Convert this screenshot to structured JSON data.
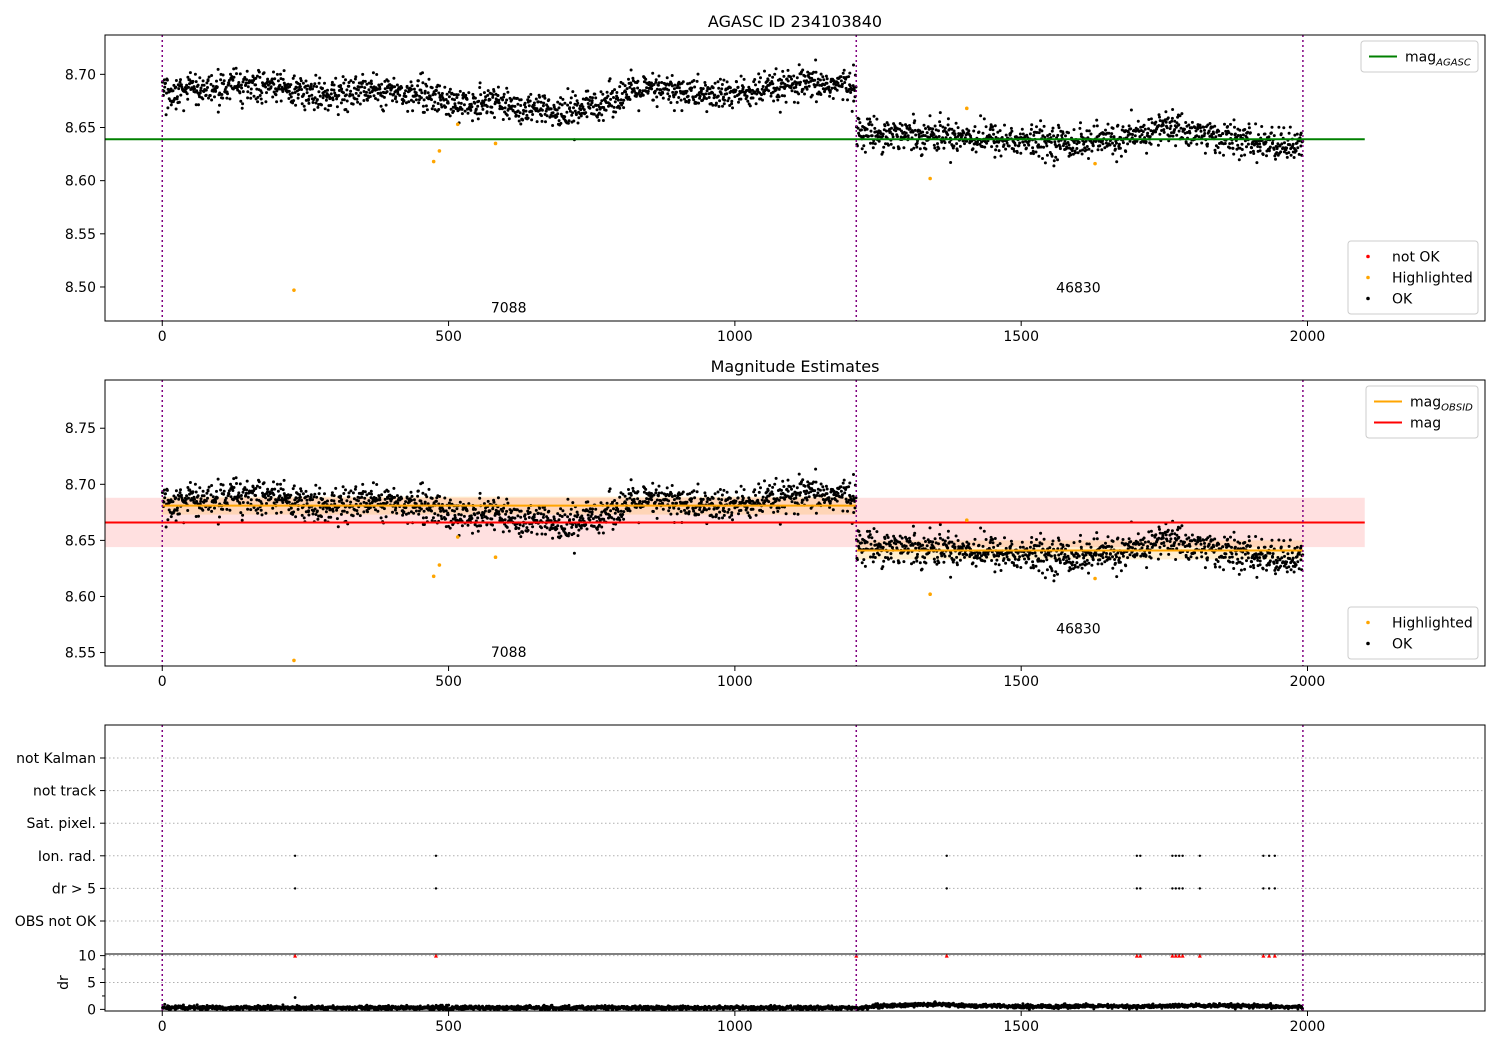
{
  "chart_data": [
    {
      "id": "agasc",
      "type": "scatter",
      "title": "AGASC ID 234103840",
      "xlim": [
        -100,
        2310
      ],
      "ylim": [
        8.468,
        8.737
      ],
      "xticks": [
        0,
        500,
        1000,
        1500,
        2000
      ],
      "yticks": [
        8.5,
        8.55,
        8.6,
        8.65,
        8.7
      ],
      "ytick_labels": [
        "8.50",
        "8.55",
        "8.60",
        "8.65",
        "8.70"
      ],
      "obs_boundaries": [
        0,
        1212,
        1992
      ],
      "obs_labels": [
        {
          "x": 605,
          "y": 8.476,
          "text": "7088"
        },
        {
          "x": 1600,
          "y": 8.495,
          "text": "46830"
        }
      ],
      "lines": [
        {
          "name": "mag_AGASC",
          "color": "#008000",
          "x": [
            -100,
            2100
          ],
          "y": [
            8.639,
            8.639
          ]
        }
      ],
      "ok_trend": [
        {
          "x": [
            0,
            60,
            120,
            200,
            280,
            360,
            440,
            520,
            580,
            640,
            700,
            760,
            820,
            880,
            960,
            1040,
            1120,
            1212
          ],
          "y": [
            8.683,
            8.684,
            8.688,
            8.689,
            8.679,
            8.686,
            8.683,
            8.672,
            8.675,
            8.666,
            8.663,
            8.672,
            8.684,
            8.685,
            8.68,
            8.684,
            8.69,
            8.69
          ]
        },
        {
          "x": [
            1212,
            1300,
            1400,
            1500,
            1600,
            1700,
            1750,
            1800,
            1900,
            1992
          ],
          "y": [
            8.645,
            8.644,
            8.642,
            8.637,
            8.636,
            8.64,
            8.652,
            8.645,
            8.636,
            8.632
          ]
        }
      ],
      "ok_scatter": 0.0075,
      "highlighted": {
        "x": [
          230,
          474,
          484,
          516,
          582,
          1341,
          1405,
          1629
        ],
        "y": [
          8.497,
          8.618,
          8.628,
          8.653,
          8.635,
          8.602,
          8.668,
          8.616
        ]
      },
      "legends": [
        {
          "position": "upper-right",
          "entries": [
            {
              "label": "mag",
              "sub": "AGASC",
              "kind": "line",
              "color": "#008000"
            }
          ]
        },
        {
          "position": "lower-right",
          "entries": [
            {
              "label": "not OK",
              "kind": "dot",
              "color": "#ff0000"
            },
            {
              "label": "Highlighted",
              "kind": "dot",
              "color": "#ffa500"
            },
            {
              "label": "OK",
              "kind": "dot",
              "color": "#000000"
            }
          ]
        }
      ]
    },
    {
      "id": "estimates",
      "type": "scatter",
      "title": "Magnitude Estimates",
      "xlim": [
        -100,
        2310
      ],
      "ylim": [
        8.538,
        8.793
      ],
      "xticks": [
        0,
        500,
        1000,
        1500,
        2000
      ],
      "yticks": [
        8.55,
        8.6,
        8.65,
        8.7,
        8.75
      ],
      "ytick_labels": [
        "8.55",
        "8.60",
        "8.65",
        "8.70",
        "8.75"
      ],
      "obs_boundaries": [
        0,
        1212,
        1992
      ],
      "obs_labels": [
        {
          "x": 605,
          "y": 8.546,
          "text": "7088"
        },
        {
          "x": 1600,
          "y": 8.567,
          "text": "46830"
        }
      ],
      "bands": [
        {
          "x": [
            -100,
            2100
          ],
          "y": [
            8.644,
            8.688
          ],
          "color": "#ff0000",
          "opacity": 0.12
        },
        {
          "x": [
            0,
            1212
          ],
          "y": [
            8.673,
            8.689
          ],
          "color": "#ffa500",
          "opacity": 0.18
        },
        {
          "x": [
            1212,
            1992
          ],
          "y": [
            8.633,
            8.65
          ],
          "color": "#ffa500",
          "opacity": 0.18
        }
      ],
      "lines": [
        {
          "name": "mag_OBSID",
          "color": "#ffa500",
          "x": [
            0,
            1212
          ],
          "y": [
            8.681,
            8.681
          ]
        },
        {
          "name": "mag_OBSID_2",
          "color": "#ffa500",
          "x": [
            1212,
            1992
          ],
          "y": [
            8.641,
            8.641
          ]
        },
        {
          "name": "mag",
          "color": "#ff0000",
          "x": [
            -100,
            2100
          ],
          "y": [
            8.666,
            8.666
          ]
        }
      ],
      "ok_trend": [
        {
          "x": [
            0,
            60,
            120,
            200,
            280,
            360,
            440,
            520,
            580,
            640,
            700,
            760,
            820,
            880,
            960,
            1040,
            1120,
            1212
          ],
          "y": [
            8.683,
            8.684,
            8.688,
            8.689,
            8.679,
            8.686,
            8.683,
            8.672,
            8.675,
            8.666,
            8.663,
            8.672,
            8.684,
            8.685,
            8.68,
            8.684,
            8.69,
            8.69
          ]
        },
        {
          "x": [
            1212,
            1300,
            1400,
            1500,
            1600,
            1700,
            1750,
            1800,
            1900,
            1992
          ],
          "y": [
            8.645,
            8.644,
            8.642,
            8.637,
            8.636,
            8.64,
            8.652,
            8.645,
            8.636,
            8.632
          ]
        }
      ],
      "ok_scatter": 0.0075,
      "highlighted": {
        "x": [
          230,
          474,
          484,
          516,
          582,
          1341,
          1405,
          1629
        ],
        "y": [
          8.543,
          8.618,
          8.628,
          8.653,
          8.635,
          8.602,
          8.668,
          8.616
        ]
      },
      "legends": [
        {
          "position": "upper-right",
          "entries": [
            {
              "label": "mag",
              "sub": "OBSID",
              "kind": "line",
              "color": "#ffa500"
            },
            {
              "label": "mag",
              "kind": "line",
              "color": "#ff0000"
            }
          ]
        },
        {
          "position": "lower-right",
          "entries": [
            {
              "label": "Highlighted",
              "kind": "dot",
              "color": "#ffa500"
            },
            {
              "label": "OK",
              "kind": "dot",
              "color": "#000000"
            }
          ]
        }
      ]
    },
    {
      "id": "flags",
      "type": "scatter",
      "title": "",
      "xlim": [
        -100,
        2310
      ],
      "xticks": [
        0,
        500,
        1000,
        1500,
        2000
      ],
      "obs_boundaries": [
        0,
        1212,
        1992
      ],
      "categories": [
        "not Kalman",
        "not track",
        "Sat. pixel.",
        "Ion. rad.",
        "dr > 5",
        "OBS not OK"
      ],
      "flags": {
        "Ion. rad.": [
          232,
          478,
          1370,
          1702,
          1708,
          1764,
          1770,
          1776,
          1782,
          1812,
          1923,
          1933,
          1943
        ],
        "dr > 5": [
          232,
          478,
          1370,
          1702,
          1708,
          1764,
          1770,
          1776,
          1782,
          1812,
          1923,
          1933,
          1943
        ]
      }
    },
    {
      "id": "dr",
      "type": "scatter",
      "ylabel": "dr",
      "xlim": [
        -100,
        2310
      ],
      "ylim": [
        -0.3,
        10.3
      ],
      "xticks": [
        0,
        500,
        1000,
        1500,
        2000
      ],
      "yticks": [
        0,
        5,
        10
      ],
      "ytick_labels": [
        "0",
        "5",
        "10"
      ],
      "obs_boundaries": [
        0,
        1212,
        1992
      ],
      "high_dr_markers": {
        "x": [
          232,
          478,
          1212,
          1370,
          1702,
          1708,
          1764,
          1770,
          1776,
          1782,
          1812,
          1923,
          1933,
          1943
        ],
        "y": 10,
        "color": "#ff0000"
      },
      "outlier": {
        "x": 232,
        "y": 2.2
      },
      "baseline_trend": {
        "x": [
          0,
          1212,
          1250,
          1300,
          1350,
          1400,
          1500,
          1600,
          1700,
          1800,
          1900,
          1992
        ],
        "y": [
          0.3,
          0.3,
          0.6,
          0.8,
          1.0,
          0.7,
          0.5,
          0.6,
          0.5,
          0.7,
          0.6,
          0.4
        ]
      }
    }
  ]
}
